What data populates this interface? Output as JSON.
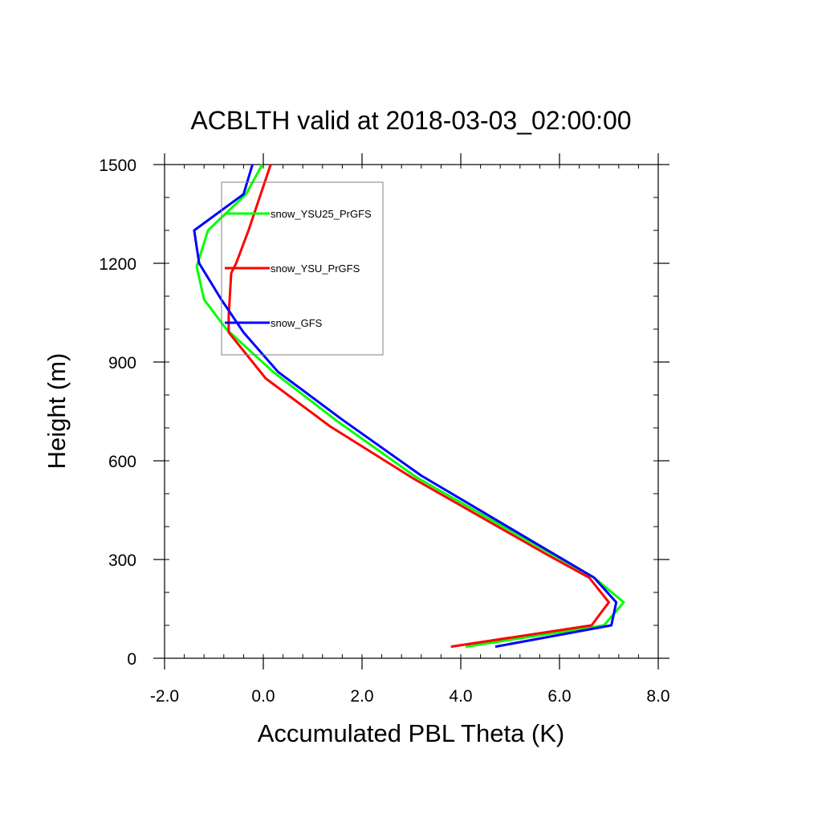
{
  "chart_data": {
    "type": "line",
    "title": "ACBLTH valid at 2018-03-03_02:00:00",
    "xlabel": "Accumulated PBL Theta (K)",
    "ylabel": "Height (m)",
    "xlim": [
      -2.0,
      8.0
    ],
    "ylim": [
      0,
      1500
    ],
    "xticks": [
      -2.0,
      0.0,
      2.0,
      4.0,
      6.0,
      8.0
    ],
    "xtick_labels": [
      "-2.0",
      "0.0",
      "2.0",
      "4.0",
      "6.0",
      "8.0"
    ],
    "yticks": [
      0,
      300,
      600,
      900,
      1200,
      1500
    ],
    "ytick_labels": [
      "0",
      "300",
      "600",
      "900",
      "1200",
      "1500"
    ],
    "legend_position": "top-left inside plot",
    "grid": false,
    "series": [
      {
        "name": "snow_YSU25_PrGFS",
        "color": "#00ff00",
        "x": [
          4.1,
          6.9,
          7.3,
          6.7,
          5.8,
          3.1,
          1.5,
          0.2,
          -0.75,
          -1.2,
          -1.35,
          -1.12,
          -0.35,
          -0.02
        ],
        "y": [
          35,
          100,
          170,
          245,
          320,
          550,
          720,
          870,
          1000,
          1090,
          1190,
          1300,
          1410,
          1500
        ]
      },
      {
        "name": "snow_YSU_PrGFS",
        "color": "#ff0000",
        "x": [
          3.8,
          6.65,
          7.0,
          6.6,
          5.75,
          3.05,
          1.35,
          0.05,
          -0.7,
          -0.7,
          -0.65,
          -0.55,
          -0.3,
          0.15
        ],
        "y": [
          35,
          100,
          170,
          245,
          315,
          545,
          705,
          850,
          990,
          1040,
          1170,
          1200,
          1300,
          1500
        ]
      },
      {
        "name": "snow_GFS",
        "color": "#0000ff",
        "x": [
          4.7,
          7.05,
          7.15,
          6.7,
          5.85,
          3.2,
          1.6,
          0.3,
          -0.4,
          -0.85,
          -1.3,
          -1.4,
          -0.4,
          -0.22
        ],
        "y": [
          35,
          100,
          170,
          245,
          320,
          555,
          725,
          870,
          990,
          1090,
          1200,
          1300,
          1410,
          1500
        ]
      }
    ]
  }
}
